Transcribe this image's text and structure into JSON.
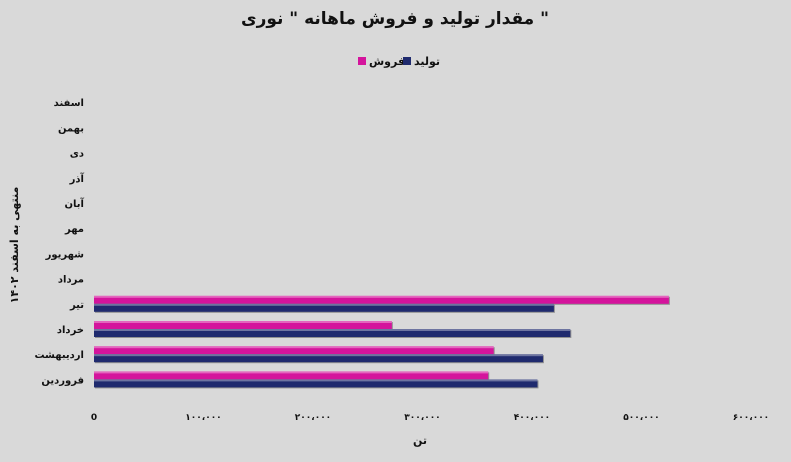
{
  "chart_data": {
    "type": "bar",
    "orientation": "horizontal",
    "title": "مقدار تولید و فروش ماهانه \" نوری \"",
    "xlabel": "تن",
    "ylabel": "منتهی به اسفند ۱۴۰۲",
    "categories": [
      "فروردین",
      "اردیبهشت",
      "خرداد",
      "تیر",
      "مرداد",
      "شهریور",
      "مهر",
      "آبان",
      "آذر",
      "دی",
      "بهمن",
      "اسفند"
    ],
    "series": [
      {
        "name": "تولید",
        "color": "#1f2a6e",
        "values": [
          405000,
          410000,
          435000,
          420000,
          null,
          null,
          null,
          null,
          null,
          null,
          null,
          null
        ]
      },
      {
        "name": "فروش",
        "color": "#d4149c",
        "values": [
          360000,
          365000,
          272000,
          525000,
          null,
          null,
          null,
          null,
          null,
          null,
          null,
          null
        ]
      }
    ],
    "xlim": [
      0,
      600000
    ],
    "xticks": [
      0,
      100000,
      200000,
      300000,
      400000,
      500000,
      600000
    ],
    "xtick_labels": [
      "0",
      "۱۰۰،۰۰۰",
      "۲۰۰،۰۰۰",
      "۳۰۰،۰۰۰",
      "۴۰۰،۰۰۰",
      "۵۰۰،۰۰۰",
      "۶۰۰،۰۰۰"
    ],
    "legend_position": "top-center",
    "grid": false
  }
}
